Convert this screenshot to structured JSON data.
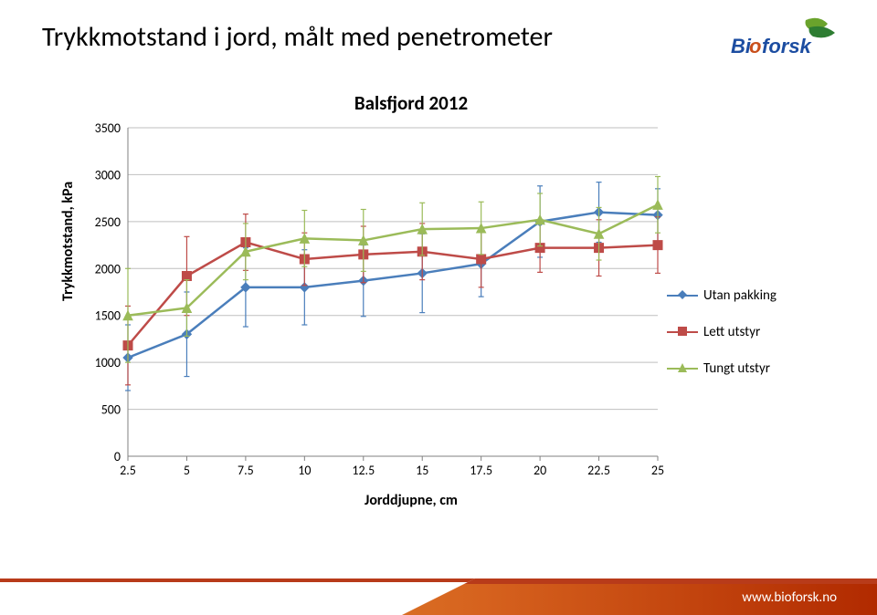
{
  "page_title": "Trykkmotstand i jord, målt med penetrometer",
  "logo_text": "Bioforsk",
  "footer_link": "www.bioforsk.no",
  "chart": {
    "type": "line-with-errorbars",
    "title": "Balsfjord 2012",
    "ylabel": "Trykkmotstand, kPa",
    "xlabel": "Jorddjupne, cm",
    "ylim": [
      0,
      3500
    ],
    "ytick_step": 500,
    "yticks": [
      0,
      500,
      1000,
      1500,
      2000,
      2500,
      3000,
      3500
    ],
    "xlim": [
      2.5,
      25
    ],
    "xticks": [
      2.5,
      5,
      7.5,
      10,
      12.5,
      15,
      17.5,
      20,
      22.5,
      25
    ],
    "xtick_labels": [
      "2.5",
      "5",
      "7.5",
      "10",
      "12.5",
      "15",
      "17.5",
      "20",
      "22.5",
      "25"
    ],
    "background_color": "#ffffff",
    "grid_color": "#bfbfbf",
    "axis_color": "#808080",
    "tick_fontsize": 14,
    "label_fontsize": 16,
    "title_fontsize": 21,
    "line_width": 2.5,
    "marker_size": 8,
    "errorbar_width": 1.2,
    "errorbar_cap": 6,
    "series": [
      {
        "name": "Utan pakking",
        "color": "#4a7ebb",
        "marker": "diamond",
        "x": [
          2.5,
          5,
          7.5,
          10,
          12.5,
          15,
          17.5,
          20,
          22.5,
          25
        ],
        "y": [
          1050,
          1300,
          1800,
          1800,
          1870,
          1950,
          2050,
          2500,
          2600,
          2570
        ],
        "err": [
          350,
          450,
          420,
          400,
          380,
          420,
          350,
          380,
          320,
          280
        ]
      },
      {
        "name": "Lett utstyr",
        "color": "#be4b48",
        "marker": "square",
        "x": [
          2.5,
          5,
          7.5,
          10,
          12.5,
          15,
          17.5,
          20,
          22.5,
          25
        ],
        "y": [
          1180,
          1920,
          2280,
          2100,
          2150,
          2180,
          2100,
          2220,
          2220,
          2250
        ],
        "err": [
          420,
          420,
          300,
          280,
          300,
          300,
          300,
          260,
          300,
          300
        ]
      },
      {
        "name": "Tungt utstyr",
        "color": "#9bbb59",
        "marker": "triangle",
        "x": [
          2.5,
          5,
          7.5,
          10,
          12.5,
          15,
          17.5,
          20,
          22.5,
          25
        ],
        "y": [
          1500,
          1580,
          2180,
          2320,
          2300,
          2420,
          2430,
          2520,
          2370,
          2680
        ],
        "err": [
          500,
          300,
          300,
          300,
          330,
          280,
          280,
          280,
          280,
          300
        ]
      }
    ]
  },
  "logo_colors": {
    "leaf1": "#6aa32c",
    "leaf2": "#2e7d32",
    "text": "#1c4da1",
    "accent": "#c94f1b"
  },
  "footer_colors": {
    "top_stripe": "#b83b1a",
    "gradient_left": "#e8a63f",
    "gradient_right": "#b12a00",
    "triangle": "#ffffff"
  }
}
